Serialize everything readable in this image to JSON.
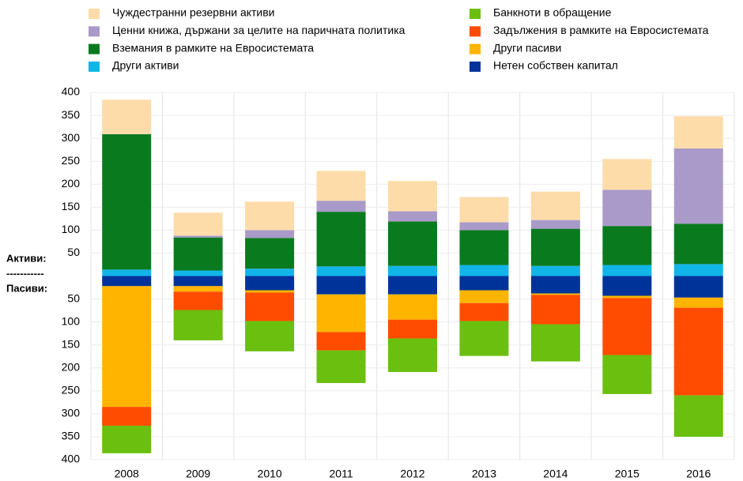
{
  "chart_data": {
    "type": "bar",
    "stacked": true,
    "categories": [
      "2008",
      "2009",
      "2010",
      "2011",
      "2012",
      "2013",
      "2014",
      "2015",
      "2016"
    ],
    "series": [
      {
        "name": "Чуждестранни резервни активи",
        "color": "#fddcaa",
        "values": [
          75,
          50,
          62,
          65,
          66,
          55,
          62,
          67,
          70
        ]
      },
      {
        "name": "Ценни книжа, държани за целите на паричната политика",
        "color": "#a99ac9",
        "values": [
          0,
          4,
          17,
          24,
          22,
          17,
          19,
          79,
          164
        ]
      },
      {
        "name": "Вземания в рамките на Евросистемата",
        "color": "#0a7a1f",
        "values": [
          295,
          72,
          67,
          119,
          97,
          76,
          81,
          85,
          88
        ]
      },
      {
        "name": "Други активи",
        "color": "#12b5e8",
        "values": [
          14,
          12,
          16,
          21,
          22,
          24,
          22,
          24,
          26
        ]
      },
      {
        "name": "Банкноти в обращение",
        "color": "#6bbf0e",
        "values": [
          -60,
          -66,
          -66,
          -71,
          -73,
          -76,
          -81,
          -85,
          -90
        ]
      },
      {
        "name": "Задължения в рамките на Евросистемата",
        "color": "#ff4c00",
        "values": [
          -41,
          -40,
          -62,
          -40,
          -41,
          -39,
          -64,
          -124,
          -191
        ]
      },
      {
        "name": "Други пасиви",
        "color": "#ffb400",
        "values": [
          -263,
          -12,
          -5,
          -82,
          -55,
          -28,
          -3,
          -5,
          -22
        ]
      },
      {
        "name": "Нетен собствен капитал",
        "color": "#003399",
        "values": [
          -22,
          -22,
          -31,
          -40,
          -40,
          -31,
          -38,
          -43,
          -47
        ]
      }
    ],
    "annotations": [
      "Активи:",
      "-----------",
      "Пасиви:"
    ],
    "ylim": [
      -400,
      400
    ],
    "yticks": [
      400,
      350,
      300,
      250,
      200,
      150,
      100,
      50,
      {
        "value": -50,
        "label": "50"
      },
      {
        "value": -100,
        "label": "100"
      },
      {
        "value": -150,
        "label": "150"
      },
      {
        "value": -200,
        "label": "200"
      },
      {
        "value": -250,
        "label": "250"
      },
      {
        "value": -300,
        "label": "300"
      },
      {
        "value": -350,
        "label": "350"
      },
      {
        "value": -400,
        "label": "400"
      }
    ],
    "grid": true
  }
}
